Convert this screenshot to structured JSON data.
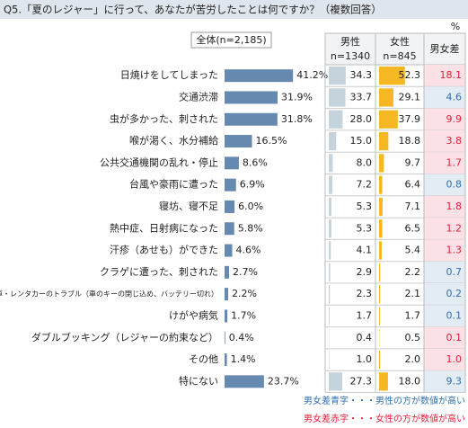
{
  "chart_data": {
    "type": "bar",
    "orientation": "horizontal",
    "title": "Q5.「夏のレジャー」に行って、あなたが苦労したことは何ですか？（複数回答）",
    "unit": "%",
    "categories": [
      "日焼けをしてしまった",
      "交通渋滞",
      "虫が多かった、刺された",
      "喉が渇く、水分補給",
      "公共交通機関の乱れ・停止",
      "台風や豪雨に遭った",
      "寝坊、寝不足",
      "熱中症、日射病になった",
      "汗疹（あせも）ができた",
      "クラゲに遭った、刺された",
      "自家用車・レンタカーのトラブル（車のキーの閉じ込め、バッテリー切れ）",
      "けがや病気",
      "ダブルブッキング（レジャーの約束など）",
      "その他",
      "特にない"
    ],
    "series": [
      {
        "name": "全体(n=2,185)",
        "color": "#6689b0",
        "values": [
          41.2,
          31.9,
          31.8,
          16.5,
          8.6,
          6.9,
          6.0,
          5.8,
          4.6,
          2.7,
          2.2,
          1.7,
          0.4,
          1.4,
          23.7
        ],
        "value_labels": [
          "41.2%",
          "31.9%",
          "31.8%",
          "16.5%",
          "8.6%",
          "6.9%",
          "6.0%",
          "5.8%",
          "4.6%",
          "2.7%",
          "2.2%",
          "1.7%",
          "0.4%",
          "1.4%",
          "23.7%"
        ]
      },
      {
        "name": "男性",
        "n_label": "n=1340",
        "color": "#c5d3dd",
        "values": [
          34.3,
          33.7,
          28.0,
          15.0,
          8.0,
          7.2,
          5.3,
          5.3,
          4.1,
          2.9,
          2.3,
          1.7,
          0.4,
          1.0,
          27.3
        ],
        "value_labels": [
          "34.3",
          "33.7",
          "28.0",
          "15.0",
          "8.0",
          "7.2",
          "5.3",
          "5.3",
          "4.1",
          "2.9",
          "2.3",
          "1.7",
          "0.4",
          "1.0",
          "27.3"
        ]
      },
      {
        "name": "女性",
        "n_label": "n=845",
        "color": "#f5b823",
        "values": [
          52.3,
          29.1,
          37.9,
          18.8,
          9.7,
          6.4,
          7.1,
          6.5,
          5.4,
          2.2,
          2.1,
          1.7,
          0.5,
          2.0,
          18.0
        ],
        "value_labels": [
          "52.3",
          "29.1",
          "37.9",
          "18.8",
          "9.7",
          "6.4",
          "7.1",
          "6.5",
          "5.4",
          "2.2",
          "2.1",
          "1.7",
          "0.5",
          "2.0",
          "18.0"
        ]
      },
      {
        "name": "男女差",
        "values": [
          18.1,
          4.6,
          9.9,
          3.8,
          1.7,
          0.8,
          1.8,
          1.2,
          1.3,
          0.7,
          0.2,
          0.1,
          0.1,
          1.0,
          9.3
        ],
        "value_labels": [
          "18.1",
          "4.6",
          "9.9",
          "3.8",
          "1.7",
          "0.8",
          "1.8",
          "1.2",
          "1.3",
          "0.7",
          "0.2",
          "0.1",
          "0.1",
          "1.0",
          "9.3"
        ],
        "text_colors": [
          "#e0203a",
          "#2e6fb0",
          "#e0203a",
          "#e0203a",
          "#e0203a",
          "#2e6fb0",
          "#e0203a",
          "#e0203a",
          "#e0203a",
          "#2e6fb0",
          "#2e6fb0",
          "#2e6fb0",
          "#e0203a",
          "#e0203a",
          "#2e6fb0"
        ],
        "cell_colors": [
          "#fbe0e6",
          "#e3ebf3",
          "#fbe0e6",
          "#fbe0e6",
          "#fbe0e6",
          "#e3ebf3",
          "#fbe0e6",
          "#fbe0e6",
          "#fbe0e6",
          "#e3ebf3",
          "#e3ebf3",
          "#e3ebf3",
          "#fbe0e6",
          "#fbe0e6",
          "#e3ebf3"
        ]
      }
    ],
    "notes": [
      {
        "text": "男女差青字・・・男性の方が数値が高い",
        "color": "#2e6fb0"
      },
      {
        "text": "男女差赤字・・・女性の方が数値が高い",
        "color": "#e0203a"
      }
    ]
  }
}
